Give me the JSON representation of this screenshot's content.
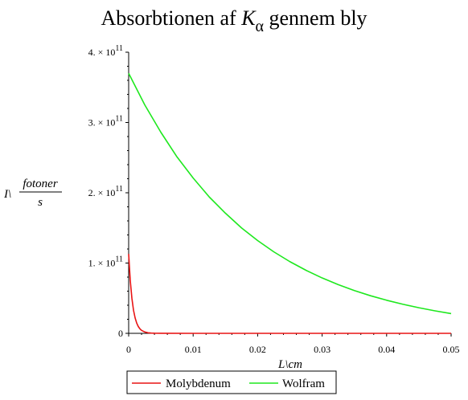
{
  "chart_data": {
    "type": "line",
    "title": {
      "main_before": "Absorbtionen af ",
      "symbol": "K",
      "subscript": "α",
      "main_after": " gennem bly"
    },
    "xlabel": "L\\cm",
    "ylabel": {
      "prefix": "I\\",
      "numerator": "fotoner",
      "denominator": "s"
    },
    "xlim": [
      0,
      0.05
    ],
    "ylim": [
      0,
      400000000000
    ],
    "x_ticks": [
      {
        "value": 0,
        "label": "0"
      },
      {
        "value": 0.01,
        "label": "0.01"
      },
      {
        "value": 0.02,
        "label": "0.02"
      },
      {
        "value": 0.03,
        "label": "0.03"
      },
      {
        "value": 0.04,
        "label": "0.04"
      },
      {
        "value": 0.05,
        "label": "0.05"
      }
    ],
    "y_ticks": [
      {
        "value": 0,
        "mantissa": "0",
        "exponent": ""
      },
      {
        "value": 100000000000,
        "mantissa": "1. × 10",
        "exponent": "11"
      },
      {
        "value": 200000000000,
        "mantissa": "2. × 10",
        "exponent": "11"
      },
      {
        "value": 300000000000,
        "mantissa": "3. × 10",
        "exponent": "11"
      },
      {
        "value": 400000000000,
        "mantissa": "4. × 10",
        "exponent": "11"
      }
    ],
    "series": [
      {
        "name": "Molybdenum",
        "color": "#e81414",
        "x": [
          0,
          0.00025,
          0.0005,
          0.00075,
          0.001,
          0.00125,
          0.0015,
          0.00175,
          0.002,
          0.0025,
          0.003,
          0.0035,
          0.004,
          0.005,
          0.01,
          0.02,
          0.03,
          0.04,
          0.05
        ],
        "y": [
          113000000000,
          75000000000,
          50000000000,
          33000000000,
          22000000000,
          14500000000,
          9600000000,
          6400000000,
          4200000000,
          1900000000,
          820000000,
          360000000,
          160000000,
          31000000,
          0,
          0,
          0,
          0,
          0
        ]
      },
      {
        "name": "Wolfram",
        "color": "#1ee81e",
        "x": [
          0,
          0.0025,
          0.005,
          0.0075,
          0.01,
          0.0125,
          0.015,
          0.0175,
          0.02,
          0.0225,
          0.025,
          0.0275,
          0.03,
          0.0325,
          0.035,
          0.0375,
          0.04,
          0.0425,
          0.045,
          0.0475,
          0.05
        ],
        "y": [
          370000000000,
          325000000000,
          286000000000,
          251000000000,
          221000000000,
          194000000000,
          171000000000,
          150000000000,
          132000000000,
          116000000000,
          102000000000,
          89700000000,
          78800000000,
          69300000000,
          60900000000,
          53500000000,
          47100000000,
          41400000000,
          36400000000,
          32000000000,
          28100000000
        ]
      }
    ],
    "grid": false,
    "legend_position": "bottom"
  }
}
